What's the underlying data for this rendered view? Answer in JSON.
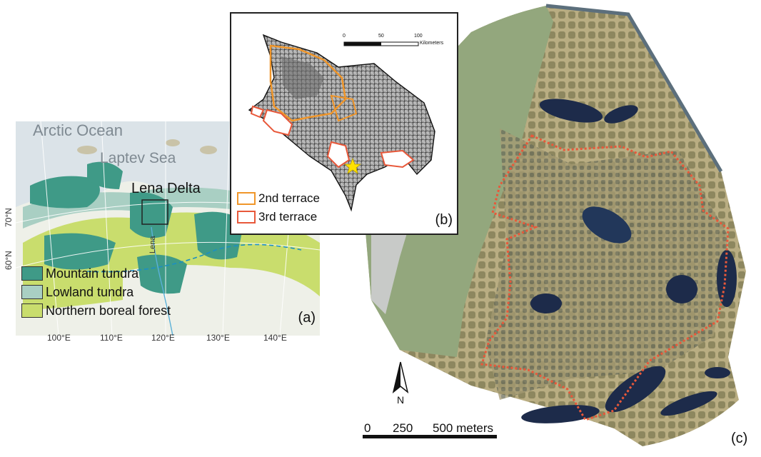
{
  "panel_a": {
    "tag": "(a)",
    "ocean_label": "Arctic Ocean",
    "sea_label": "Laptev Sea",
    "delta_label": "Lena Delta",
    "river_label": "Lena",
    "legend": [
      {
        "label": "Mountain tundra",
        "color": "#3f9a87"
      },
      {
        "label": "Lowland tundra",
        "color": "#a9cfc3"
      },
      {
        "label": "Northern boreal forest",
        "color": "#c9dd6d"
      }
    ],
    "longitudes": [
      "100°E",
      "110°E",
      "120°E",
      "130°E",
      "140°E"
    ],
    "latitudes": [
      "70°N",
      "60°N"
    ]
  },
  "panel_b": {
    "tag": "(b)",
    "scale_ticks": [
      "0",
      "50",
      "100"
    ],
    "scale_unit": "Kilometers",
    "legend": [
      {
        "label": "2nd terrace",
        "color": "#f0962a"
      },
      {
        "label": "3rd terrace",
        "color": "#e8583a"
      }
    ]
  },
  "panel_c": {
    "tag": "(c)",
    "north_label": "N",
    "scale_ticks": [
      "0",
      "250",
      "500 meters"
    ]
  }
}
